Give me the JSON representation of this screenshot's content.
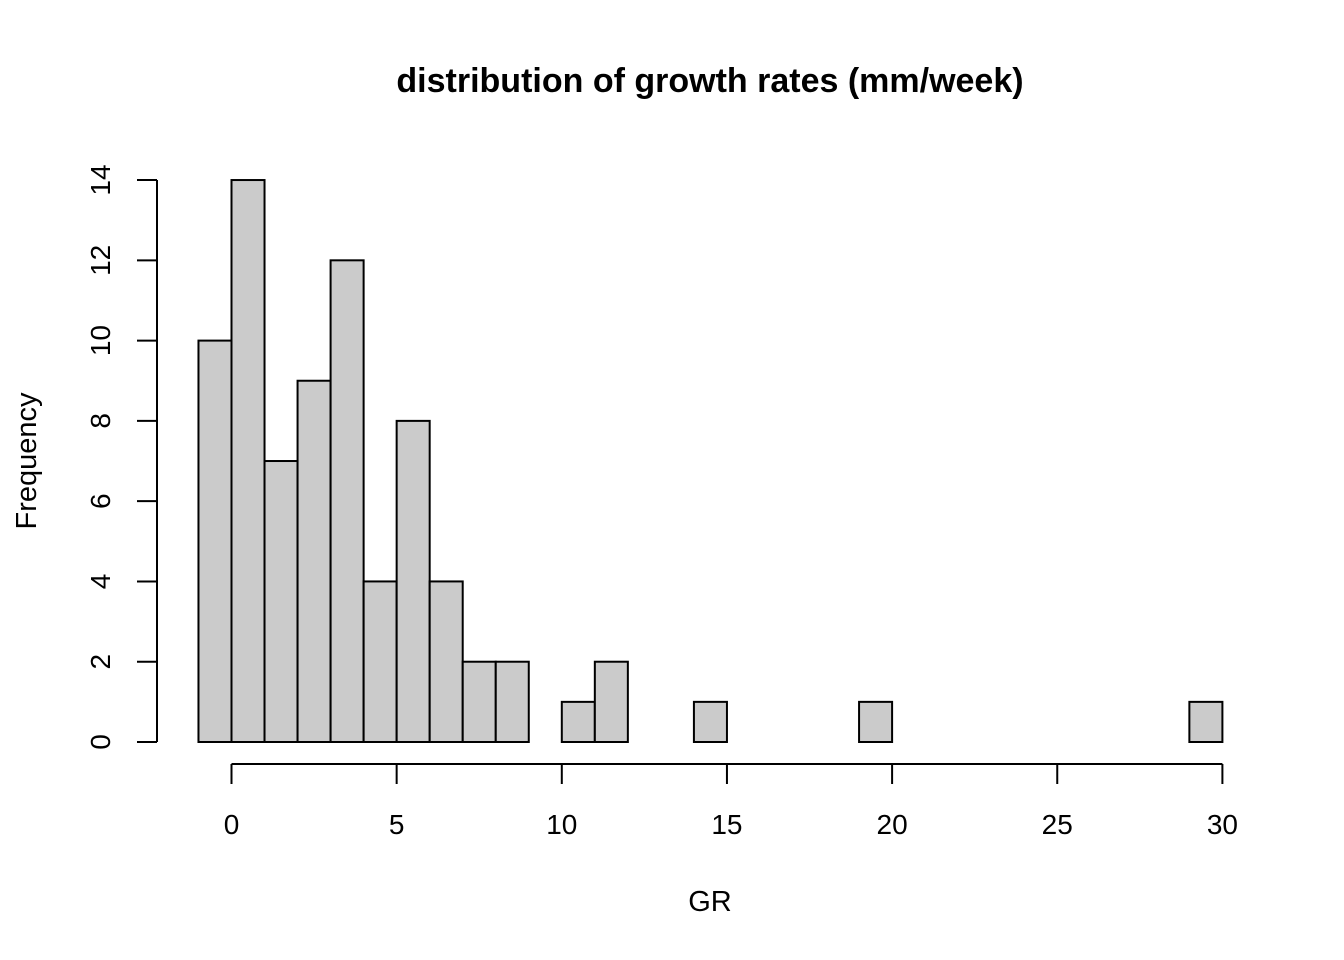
{
  "chart_data": {
    "type": "bar",
    "title": "distribution of growth rates (mm/week)",
    "xlabel": "GR",
    "ylabel": "Frequency",
    "bin_width": 1,
    "bins": [
      {
        "start": -1,
        "end": 0,
        "count": 10
      },
      {
        "start": 0,
        "end": 1,
        "count": 14
      },
      {
        "start": 1,
        "end": 2,
        "count": 7
      },
      {
        "start": 2,
        "end": 3,
        "count": 9
      },
      {
        "start": 3,
        "end": 4,
        "count": 12
      },
      {
        "start": 4,
        "end": 5,
        "count": 4
      },
      {
        "start": 5,
        "end": 6,
        "count": 8
      },
      {
        "start": 6,
        "end": 7,
        "count": 4
      },
      {
        "start": 7,
        "end": 8,
        "count": 2
      },
      {
        "start": 8,
        "end": 9,
        "count": 2
      },
      {
        "start": 9,
        "end": 10,
        "count": 0
      },
      {
        "start": 10,
        "end": 11,
        "count": 1
      },
      {
        "start": 11,
        "end": 12,
        "count": 2
      },
      {
        "start": 12,
        "end": 13,
        "count": 0
      },
      {
        "start": 13,
        "end": 14,
        "count": 0
      },
      {
        "start": 14,
        "end": 15,
        "count": 1
      },
      {
        "start": 15,
        "end": 16,
        "count": 0
      },
      {
        "start": 16,
        "end": 17,
        "count": 0
      },
      {
        "start": 17,
        "end": 18,
        "count": 0
      },
      {
        "start": 18,
        "end": 19,
        "count": 0
      },
      {
        "start": 19,
        "end": 20,
        "count": 1
      },
      {
        "start": 20,
        "end": 21,
        "count": 0
      },
      {
        "start": 21,
        "end": 22,
        "count": 0
      },
      {
        "start": 22,
        "end": 23,
        "count": 0
      },
      {
        "start": 23,
        "end": 24,
        "count": 0
      },
      {
        "start": 24,
        "end": 25,
        "count": 0
      },
      {
        "start": 25,
        "end": 26,
        "count": 0
      },
      {
        "start": 26,
        "end": 27,
        "count": 0
      },
      {
        "start": 27,
        "end": 28,
        "count": 0
      },
      {
        "start": 28,
        "end": 29,
        "count": 0
      },
      {
        "start": 29,
        "end": 30,
        "count": 1
      }
    ],
    "xticks": [
      0,
      5,
      10,
      15,
      20,
      25,
      30
    ],
    "yticks": [
      0,
      2,
      4,
      6,
      8,
      10,
      12,
      14
    ],
    "xlim": [
      -1,
      30
    ],
    "ylim": [
      0,
      14
    ],
    "grid": false,
    "legend": "none",
    "bar_color": "#cbcbcb",
    "edge_color": "#000000"
  }
}
